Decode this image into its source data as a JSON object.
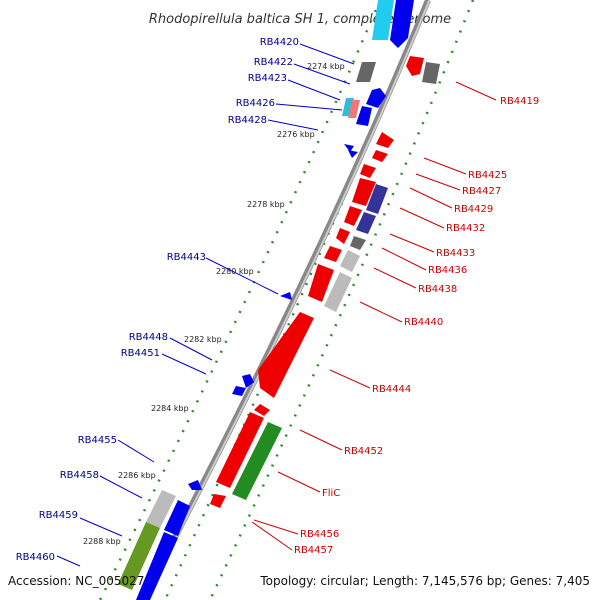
{
  "title": "Rhodopirellula baltica SH 1, complete genome",
  "accession": "Accession: NC_005027",
  "topology": "Topology: circular; Length: 7,145,576 bp; Genes: 7,405",
  "ticks": [
    "2274 kbp",
    "2276 kbp",
    "2278 kbp",
    "2280 kbp",
    "2282 kbp",
    "2284 kbp",
    "2286 kbp",
    "2288 kbp"
  ],
  "left_labels": [
    "RB4420",
    "RB4422",
    "RB4423",
    "RB4426",
    "RB4428",
    "RB4443",
    "RB4448",
    "RB4451",
    "RB4455",
    "RB4458",
    "RB4459",
    "RB4460"
  ],
  "right_labels": [
    "RB4419",
    "RB4425",
    "RB4427",
    "RB4429",
    "RB4432",
    "RB4433",
    "RB4436",
    "RB4438",
    "RB4440",
    "RB4444",
    "RB4452",
    "FliC",
    "RB4456",
    "RB4457"
  ],
  "colors": {
    "forward_strand_label": "#00008b",
    "reverse_strand_label": "#cc0000",
    "forward_gene": "#0000ee",
    "reverse_gene": "#ee0000",
    "backbone": "#888888",
    "tick_dots": "#2e8b2e"
  }
}
